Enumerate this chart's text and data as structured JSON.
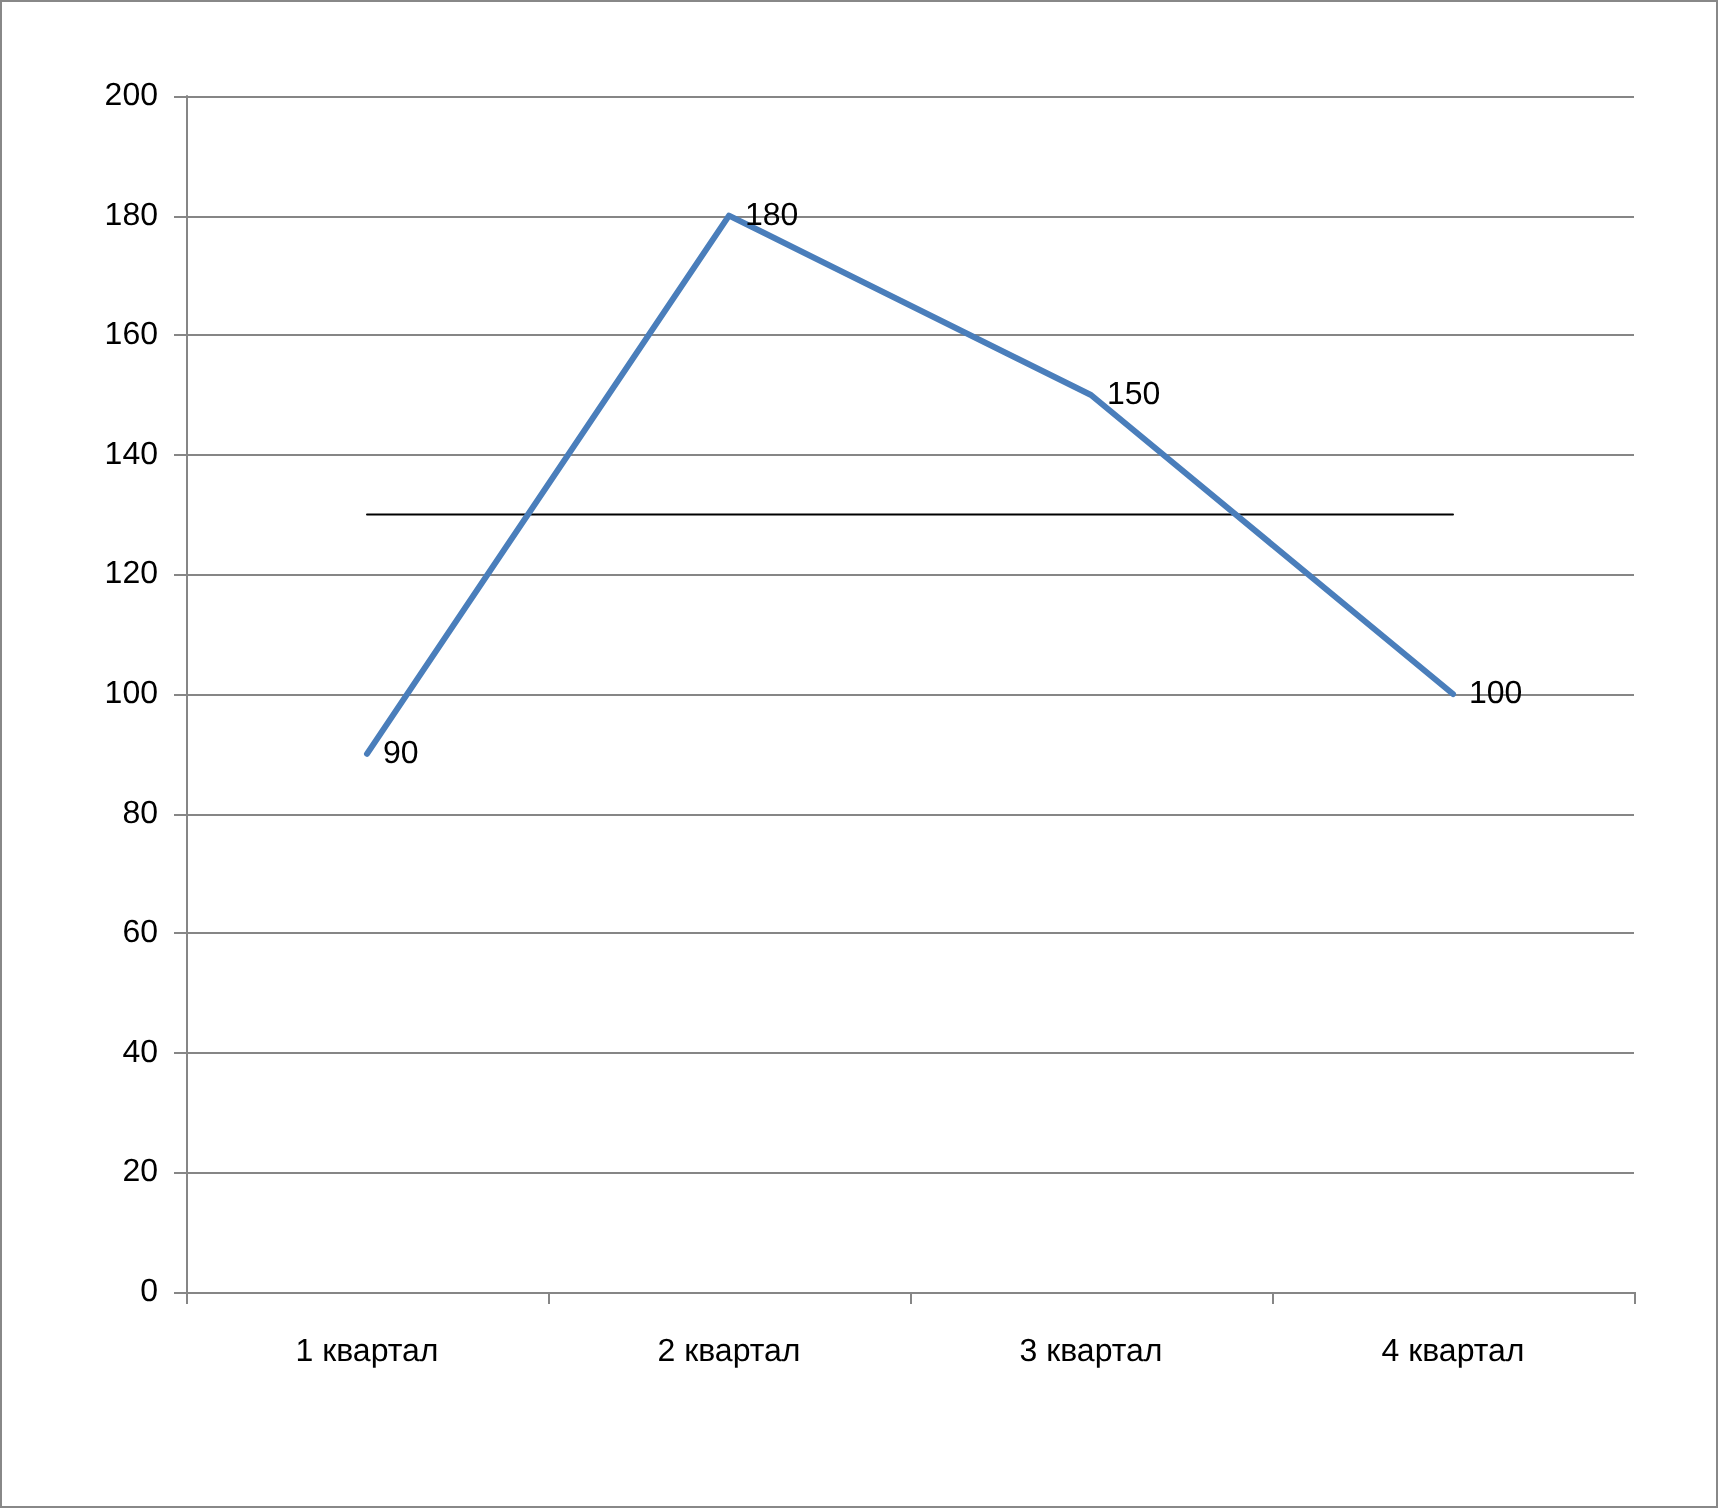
{
  "chart_data": {
    "type": "line",
    "categories": [
      "1 квартал",
      "2 квартал",
      "3 квартал",
      "4 квартал"
    ],
    "series": [
      {
        "color": "#4a7ebb",
        "values": [
          90,
          180,
          150,
          100
        ],
        "value_labels": [
          "90",
          "180",
          "150",
          "100"
        ]
      },
      {
        "color": "#000000",
        "values": [
          130,
          130,
          130,
          130
        ]
      }
    ],
    "ylim": [
      0,
      200
    ],
    "yticks": [
      0,
      20,
      40,
      60,
      80,
      100,
      120,
      140,
      160,
      180,
      200
    ],
    "grid": "y",
    "marker": "none"
  }
}
